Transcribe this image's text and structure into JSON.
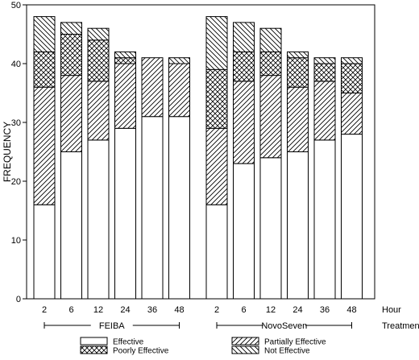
{
  "chart_data": {
    "type": "bar",
    "stacked": true,
    "ylabel": "FREQUENCY",
    "ylim": [
      0,
      50
    ],
    "yticks": [
      0,
      10,
      20,
      30,
      40,
      50
    ],
    "x_axis_title": "Hour",
    "group_axis_title": "Treatment",
    "groups": [
      {
        "name": "FEIBA",
        "bars": [
          {
            "hour": "2",
            "Effective": 16,
            "Partially Effective": 20,
            "Poorly Effective": 6,
            "Not Effective": 6
          },
          {
            "hour": "6",
            "Effective": 25,
            "Partially Effective": 13,
            "Poorly Effective": 7,
            "Not Effective": 2
          },
          {
            "hour": "12",
            "Effective": 27,
            "Partially Effective": 10,
            "Poorly Effective": 7,
            "Not Effective": 2
          },
          {
            "hour": "24",
            "Effective": 29,
            "Partially Effective": 11,
            "Poorly Effective": 1,
            "Not Effective": 1
          },
          {
            "hour": "36",
            "Effective": 31,
            "Partially Effective": 10,
            "Poorly Effective": 0,
            "Not Effective": 0
          },
          {
            "hour": "48",
            "Effective": 31,
            "Partially Effective": 9,
            "Poorly Effective": 0,
            "Not Effective": 1
          }
        ]
      },
      {
        "name": "NovoSeven",
        "bars": [
          {
            "hour": "2",
            "Effective": 16,
            "Partially Effective": 13,
            "Poorly Effective": 10,
            "Not Effective": 9
          },
          {
            "hour": "6",
            "Effective": 23,
            "Partially Effective": 14,
            "Poorly Effective": 5,
            "Not Effective": 5
          },
          {
            "hour": "12",
            "Effective": 24,
            "Partially Effective": 14,
            "Poorly Effective": 4,
            "Not Effective": 4
          },
          {
            "hour": "24",
            "Effective": 25,
            "Partially Effective": 11,
            "Poorly Effective": 5,
            "Not Effective": 1
          },
          {
            "hour": "36",
            "Effective": 27,
            "Partially Effective": 10,
            "Poorly Effective": 3,
            "Not Effective": 1
          },
          {
            "hour": "48",
            "Effective": 28,
            "Partially Effective": 7,
            "Poorly Effective": 5,
            "Not Effective": 1
          }
        ]
      }
    ],
    "series": [
      {
        "name": "Effective",
        "pattern": "blank"
      },
      {
        "name": "Partially Effective",
        "pattern": "hatch-forward"
      },
      {
        "name": "Poorly Effective",
        "pattern": "crosshatch"
      },
      {
        "name": "Not Effective",
        "pattern": "hatch-back"
      }
    ],
    "legend_placement": "bottom",
    "grid": false,
    "colors": {
      "stroke": "#000000",
      "background": "#ffffff"
    }
  }
}
